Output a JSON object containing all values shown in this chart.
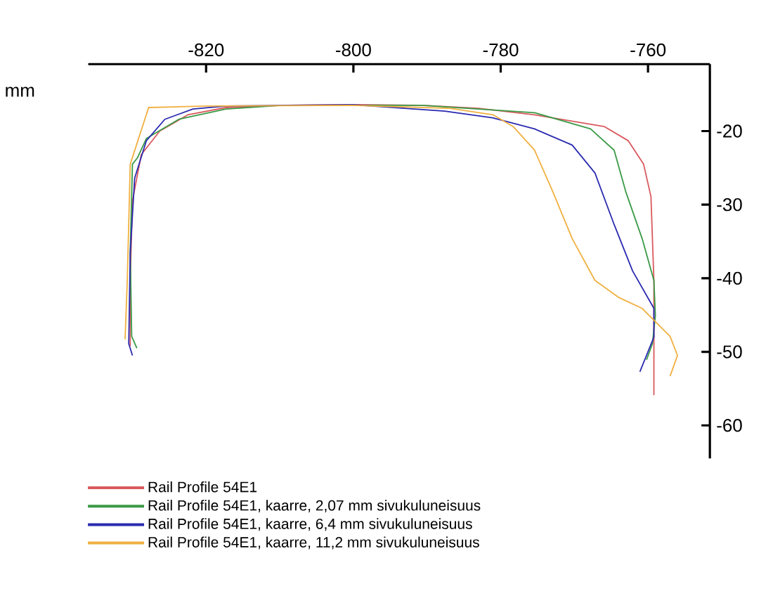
{
  "chart_data": {
    "type": "line",
    "ylabel": "mm",
    "xlim": [
      -836,
      -751.6
    ],
    "ylim": [
      -64.5,
      -10.9
    ],
    "xticks": [
      -820,
      -800,
      -780,
      -760
    ],
    "yticks": [
      -20,
      -30,
      -40,
      -50,
      -60
    ],
    "legend": "bottom",
    "series": [
      {
        "name": "Rail Profile 54E1",
        "color": "#d9595e",
        "x": [
          -830.3,
          -830.3,
          -830.0,
          -828.8,
          -826.3,
          -822.5,
          -817.3,
          -809.7,
          -800.2,
          -790.7,
          -783.0,
          -775.4,
          -765.9,
          -762.7,
          -760.6,
          -759.6,
          -759.2,
          -759.2
        ],
        "values": [
          -49.2,
          -40.3,
          -29.5,
          -23.2,
          -20.0,
          -17.8,
          -16.8,
          -16.5,
          -16.4,
          -16.5,
          -16.9,
          -17.8,
          -19.4,
          -21.3,
          -24.5,
          -28.9,
          -40.3,
          -55.9
        ]
      },
      {
        "name": "Rail Profile 54E1, kaarre, 2,07 mm sivukuluneisuus",
        "color": "#3a9a46",
        "x": [
          -829.4,
          -830.1,
          -830.3,
          -830.0,
          -829.3,
          -828.1,
          -823.7,
          -817.3,
          -809.7,
          -790.7,
          -775.4,
          -767.8,
          -764.6,
          -763.0,
          -760.8,
          -759.2,
          -759.0,
          -759.4,
          -760.2
        ],
        "values": [
          -49.5,
          -47.9,
          -36.5,
          -24.5,
          -23.6,
          -21.0,
          -18.4,
          -17.0,
          -16.5,
          -16.5,
          -17.5,
          -19.7,
          -22.6,
          -28.3,
          -34.6,
          -40.3,
          -45.1,
          -48.9,
          -51.1
        ]
      },
      {
        "name": "Rail Profile 54E1, kaarre, 6,4 mm sivukuluneisuus",
        "color": "#2a2ab0",
        "x": [
          -830.0,
          -830.5,
          -830.3,
          -829.7,
          -828.1,
          -825.6,
          -821.8,
          -817.3,
          -800.2,
          -787.6,
          -781.1,
          -775.4,
          -770.3,
          -767.2,
          -764.6,
          -762.1,
          -759.2,
          -759.2,
          -761.1
        ],
        "values": [
          -50.5,
          -48.9,
          -36.5,
          -26.4,
          -21.3,
          -18.4,
          -17.0,
          -16.6,
          -16.4,
          -17.3,
          -18.2,
          -19.7,
          -21.9,
          -25.7,
          -32.7,
          -39.0,
          -44.1,
          -48.0,
          -52.7
        ]
      },
      {
        "name": "Rail Profile 54E1, kaarre, 11,2 mm sivukuluneisuus",
        "color": "#f0b040",
        "x": [
          -831.0,
          -830.7,
          -830.3,
          -827.8,
          -820.0,
          -800.2,
          -786.9,
          -781.0,
          -778.3,
          -775.4,
          -772.9,
          -770.3,
          -767.2,
          -764.0,
          -760.8,
          -757.0,
          -756.0,
          -757.0
        ],
        "values": [
          -48.3,
          -40.3,
          -24.5,
          -16.8,
          -16.6,
          -16.5,
          -16.9,
          -17.8,
          -19.4,
          -22.6,
          -28.3,
          -34.6,
          -40.3,
          -42.6,
          -44.1,
          -47.9,
          -50.5,
          -53.3
        ]
      }
    ]
  }
}
